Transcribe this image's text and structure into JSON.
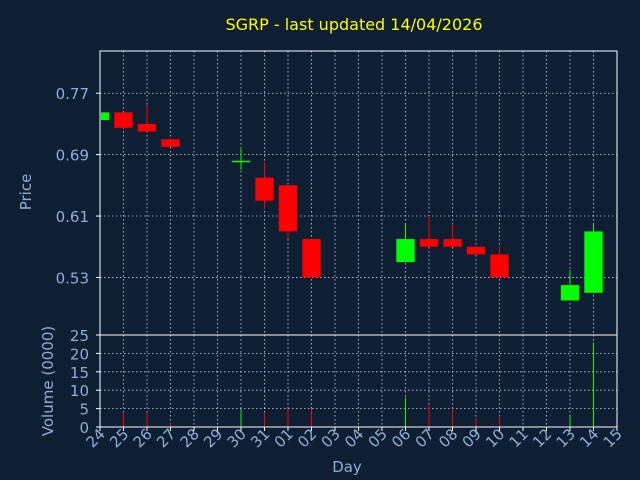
{
  "colors": {
    "background": "#0e1e33",
    "axis": "#ffffff",
    "grid": "#cfd6df",
    "title": "#ffff00",
    "label": "#8fb0d8",
    "up": "#00ff00",
    "down": "#ff0000"
  },
  "chart_data": {
    "type": "candlestick",
    "title": "SGRP - last updated 14/04/2026",
    "xlabel": "Day",
    "ylabel_price": "Price",
    "ylabel_volume": "Volume (0000)",
    "grid": true,
    "price_ylim": [
      0.455,
      0.825
    ],
    "price_yticks": [
      "0.77",
      "0.69",
      "0.61",
      "0.53"
    ],
    "price_ytick_values": [
      0.77,
      0.69,
      0.61,
      0.53
    ],
    "volume_ylim": [
      0,
      25
    ],
    "volume_yticks": [
      "0",
      "5",
      "10",
      "15",
      "20",
      "25"
    ],
    "volume_ytick_values": [
      0,
      5,
      10,
      15,
      20,
      25
    ],
    "x_ticks": [
      "24",
      "25",
      "26",
      "27",
      "28",
      "29",
      "30",
      "31",
      "01",
      "02",
      "03",
      "04",
      "05",
      "06",
      "07",
      "08",
      "09",
      "10",
      "11",
      "12",
      "13",
      "14",
      "15"
    ],
    "candles": [
      {
        "day": "24",
        "open": 0.735,
        "high": 0.745,
        "low": 0.735,
        "close": 0.745,
        "volume": 0
      },
      {
        "day": "25",
        "open": 0.745,
        "high": 0.745,
        "low": 0.725,
        "close": 0.725,
        "volume": 4
      },
      {
        "day": "26",
        "open": 0.73,
        "high": 0.755,
        "low": 0.72,
        "close": 0.72,
        "volume": 4
      },
      {
        "day": "27",
        "open": 0.71,
        "high": 0.71,
        "low": 0.7,
        "close": 0.7,
        "volume": 1
      },
      {
        "day": "30",
        "open": 0.68,
        "high": 0.7,
        "low": 0.67,
        "close": 0.681,
        "volume": 5
      },
      {
        "day": "31",
        "open": 0.66,
        "high": 0.68,
        "low": 0.62,
        "close": 0.63,
        "volume": 4
      },
      {
        "day": "01",
        "open": 0.65,
        "high": 0.65,
        "low": 0.58,
        "close": 0.59,
        "volume": 5
      },
      {
        "day": "02",
        "open": 0.58,
        "high": 0.58,
        "low": 0.53,
        "close": 0.53,
        "volume": 5
      },
      {
        "day": "06",
        "open": 0.55,
        "high": 0.6,
        "low": 0.55,
        "close": 0.58,
        "volume": 8
      },
      {
        "day": "07",
        "open": 0.58,
        "high": 0.61,
        "low": 0.57,
        "close": 0.57,
        "volume": 6
      },
      {
        "day": "08",
        "open": 0.58,
        "high": 0.6,
        "low": 0.57,
        "close": 0.57,
        "volume": 5
      },
      {
        "day": "09",
        "open": 0.57,
        "high": 0.57,
        "low": 0.56,
        "close": 0.56,
        "volume": 2
      },
      {
        "day": "10",
        "open": 0.56,
        "high": 0.57,
        "low": 0.53,
        "close": 0.53,
        "volume": 3
      },
      {
        "day": "13",
        "open": 0.5,
        "high": 0.54,
        "low": 0.5,
        "close": 0.52,
        "volume": 3
      },
      {
        "day": "14",
        "open": 0.51,
        "high": 0.6,
        "low": 0.51,
        "close": 0.59,
        "volume": 23
      }
    ]
  }
}
